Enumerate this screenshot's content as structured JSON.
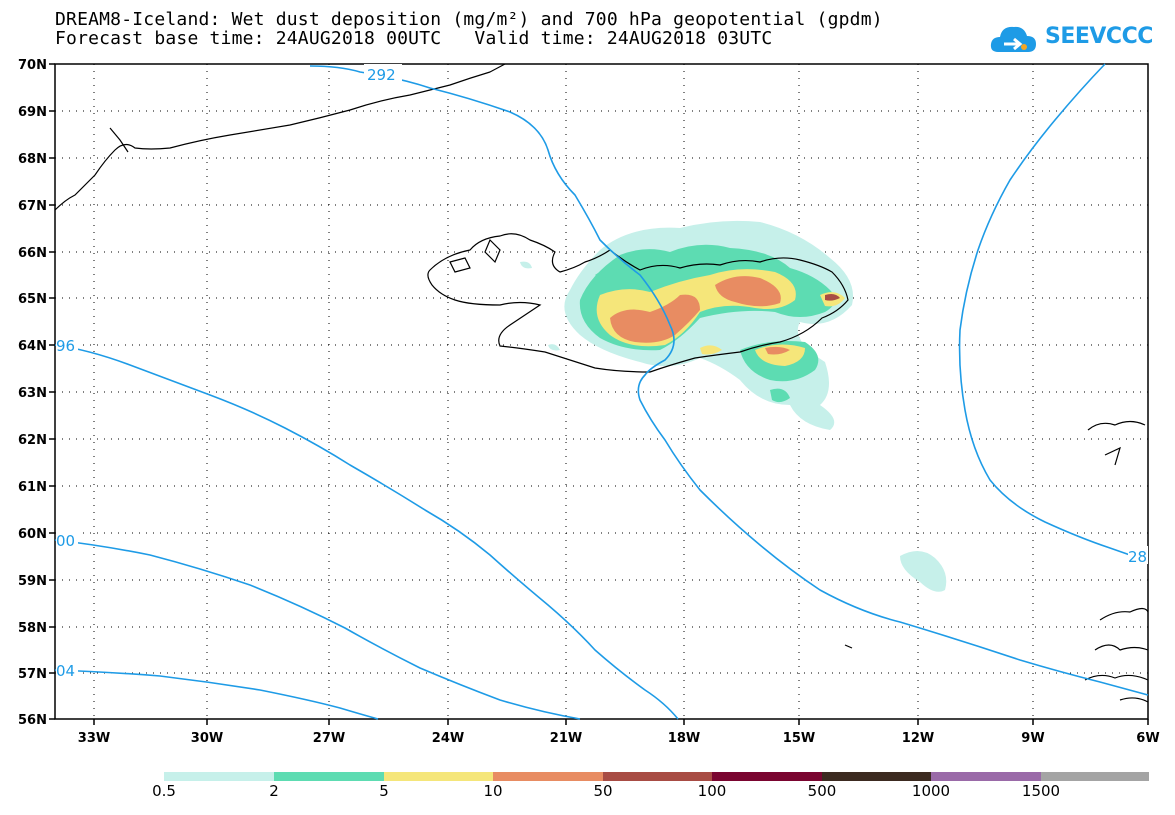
{
  "title_line1": "DREAM8-Iceland: Wet dust deposition (mg/m²) and 700 hPa geopotential (gpdm)",
  "title_line2": "Forecast base time: 24AUG2018 00UTC   Valid time: 24AUG2018 03UTC",
  "logo_text": "SEEVCCC",
  "lat_labels": [
    "70N",
    "69N",
    "68N",
    "67N",
    "66N",
    "65N",
    "64N",
    "63N",
    "62N",
    "61N",
    "60N",
    "59N",
    "58N",
    "57N",
    "56N"
  ],
  "lon_labels": [
    "33W",
    "30W",
    "27W",
    "24W",
    "21W",
    "18W",
    "15W",
    "12W",
    "9W",
    "6W"
  ],
  "contour_labels": [
    "292",
    "96",
    "00",
    "04",
    "28"
  ],
  "contour_color": "#1e9be6",
  "legend": {
    "labels": [
      "0.5",
      "2",
      "5",
      "10",
      "50",
      "100",
      "500",
      "1000",
      "1500"
    ],
    "colors": [
      "#c6f0ea",
      "#5ddcb2",
      "#f5e67a",
      "#e88c62",
      "#a84c44",
      "#7a0530",
      "#3c2a20",
      "#9a6aa8",
      "#a4a4a4"
    ]
  }
}
